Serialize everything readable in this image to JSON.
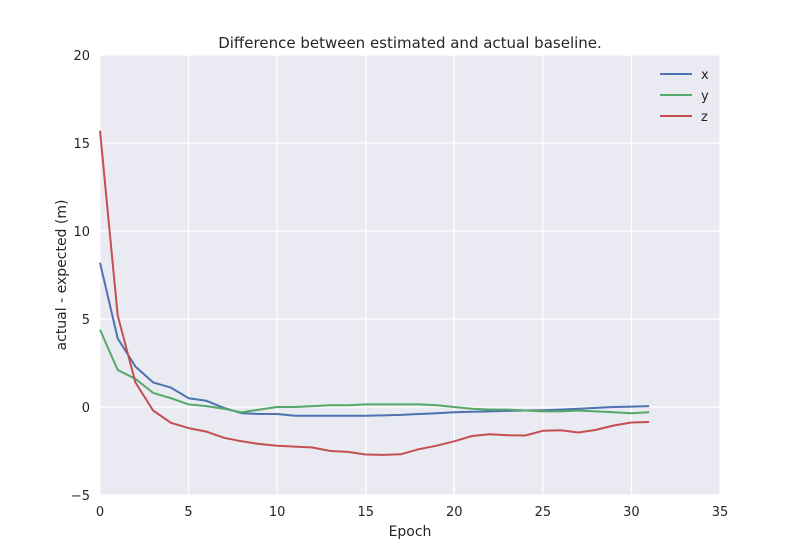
{
  "chart_data": {
    "type": "line",
    "title": "Difference between estimated and actual baseline.",
    "xlabel": "Epoch",
    "ylabel": "actual - expected (m)",
    "xlim": [
      0,
      35
    ],
    "ylim": [
      -5,
      20
    ],
    "xticks": [
      0,
      5,
      10,
      15,
      20,
      25,
      30,
      35
    ],
    "yticks": [
      -5,
      0,
      5,
      10,
      15,
      20
    ],
    "grid": true,
    "legend_position": "top-right",
    "background": "#eaeaf2",
    "x": [
      0,
      1,
      2,
      3,
      4,
      5,
      6,
      7,
      8,
      9,
      10,
      11,
      12,
      13,
      14,
      15,
      16,
      17,
      18,
      19,
      20,
      21,
      22,
      23,
      24,
      25,
      26,
      27,
      28,
      29,
      30,
      31
    ],
    "series": [
      {
        "name": "x",
        "color": "#4c72b0",
        "values": [
          8.2,
          3.9,
          2.3,
          1.4,
          1.1,
          0.5,
          0.35,
          -0.05,
          -0.35,
          -0.4,
          -0.4,
          -0.5,
          -0.5,
          -0.5,
          -0.5,
          -0.5,
          -0.48,
          -0.45,
          -0.4,
          -0.35,
          -0.3,
          -0.27,
          -0.25,
          -0.22,
          -0.2,
          -0.18,
          -0.15,
          -0.1,
          -0.05,
          0.0,
          0.02,
          0.05
        ]
      },
      {
        "name": "y",
        "color": "#55a868",
        "values": [
          4.4,
          2.1,
          1.6,
          0.8,
          0.5,
          0.15,
          0.05,
          -0.1,
          -0.3,
          -0.15,
          0.0,
          0.0,
          0.05,
          0.1,
          0.1,
          0.15,
          0.15,
          0.15,
          0.15,
          0.1,
          0.0,
          -0.1,
          -0.15,
          -0.15,
          -0.2,
          -0.25,
          -0.25,
          -0.2,
          -0.25,
          -0.3,
          -0.35,
          -0.3
        ]
      },
      {
        "name": "z",
        "color": "#c44e52",
        "values": [
          15.7,
          5.2,
          1.4,
          -0.2,
          -0.9,
          -1.2,
          -1.4,
          -1.75,
          -1.95,
          -2.1,
          -2.2,
          -2.25,
          -2.3,
          -2.5,
          -2.55,
          -2.7,
          -2.72,
          -2.68,
          -2.4,
          -2.2,
          -1.95,
          -1.65,
          -1.55,
          -1.6,
          -1.62,
          -1.35,
          -1.32,
          -1.45,
          -1.3,
          -1.05,
          -0.88,
          -0.85
        ]
      }
    ]
  }
}
